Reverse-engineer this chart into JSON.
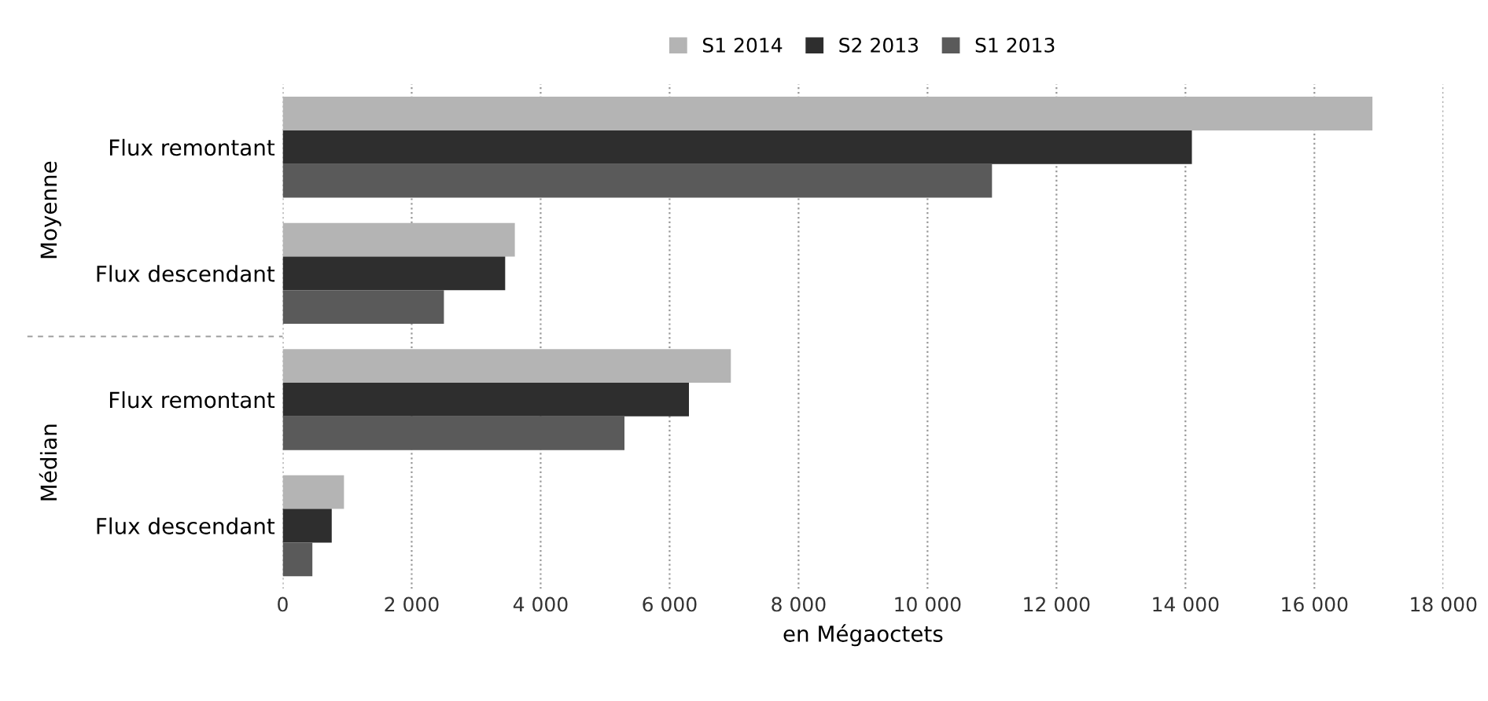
{
  "chart_data": {
    "type": "bar",
    "orientation": "horizontal",
    "xlabel": "en Mégaoctets",
    "categories": [
      "Flux remontant",
      "Flux descendant",
      "Flux remontant",
      "Flux descendant"
    ],
    "series": [
      {
        "name": "S1 2014",
        "color": "#b4b4b4",
        "values": [
          16900,
          3600,
          6950,
          950
        ]
      },
      {
        "name": "S2 2013",
        "color": "#2e2e2e",
        "values": [
          14100,
          3450,
          6300,
          760
        ]
      },
      {
        "name": "S1 2013",
        "color": "#5a5a5a",
        "values": [
          11000,
          2500,
          5300,
          460
        ]
      }
    ],
    "annotations": [
      "Moyenne",
      "Médian"
    ],
    "xlim": [
      0,
      18000
    ],
    "xticks": [
      0,
      {
        "value": 2000,
        "label": "2 000"
      },
      {
        "value": 4000,
        "label": "4 000"
      },
      {
        "value": 6000,
        "label": "6 000"
      },
      {
        "value": 8000,
        "label": "8 000"
      },
      {
        "value": 10000,
        "label": "10 000"
      },
      {
        "value": 12000,
        "label": "12 000"
      },
      {
        "value": 14000,
        "label": "14 000"
      },
      {
        "value": 16000,
        "label": "16 000"
      },
      {
        "value": 18000,
        "label": "18 000"
      }
    ],
    "grid": "x",
    "legend": "top"
  }
}
